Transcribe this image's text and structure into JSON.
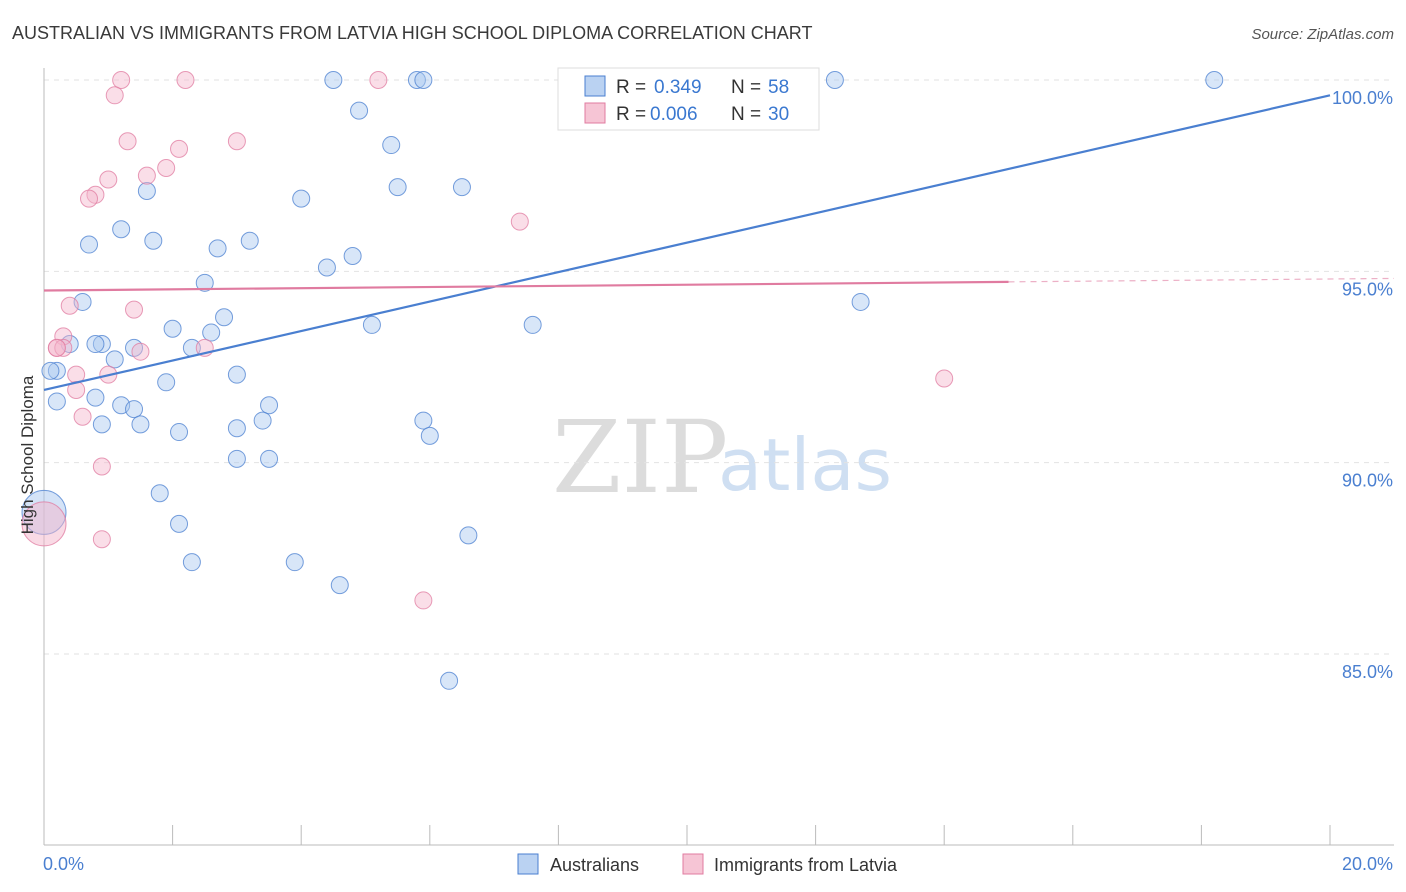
{
  "chart_data": {
    "type": "scatter",
    "title": "AUSTRALIAN VS IMMIGRANTS FROM LATVIA HIGH SCHOOL DIPLOMA CORRELATION CHART",
    "source": "Source: ZipAtlas.com",
    "ylabel": "High School Diploma",
    "xlim": [
      0,
      20
    ],
    "ylim": [
      80.5,
      101.0
    ],
    "x_ticks": [
      {
        "value": 0,
        "label": "0.0%"
      },
      {
        "value": 20,
        "label": "20.0%"
      }
    ],
    "y_ticks": [
      {
        "value": 100,
        "label": "100.0%"
      },
      {
        "value": 95,
        "label": "95.0%"
      },
      {
        "value": 90,
        "label": "90.0%"
      },
      {
        "value": 85,
        "label": "85.0%"
      }
    ],
    "watermark": {
      "zip": "ZIP",
      "atlas": "atlas"
    },
    "colors": {
      "blue": "#4a7fd0",
      "pink": "#e07ba0",
      "blue_fill": "#a9c7ef",
      "pink_fill": "#f4b6cb"
    },
    "stats": [
      {
        "r_label": "R =",
        "r_value": "0.349",
        "n_label": "N =",
        "n_value": "58"
      },
      {
        "r_label": "R =",
        "r_value": "0.006",
        "n_label": "N =",
        "n_value": "30"
      }
    ],
    "series": [
      {
        "name": "Australians",
        "color": "#4a7fd0",
        "trend": {
          "x0": 0,
          "y0": 91.9,
          "x1": 20,
          "y1": 99.6,
          "dash_from": null
        },
        "points": [
          [
            4.5,
            100.0
          ],
          [
            5.8,
            100.0
          ],
          [
            5.9,
            100.0
          ],
          [
            12.3,
            100.0
          ],
          [
            18.2,
            100.0
          ],
          [
            4.9,
            99.2
          ],
          [
            5.4,
            98.3
          ],
          [
            5.5,
            97.2
          ],
          [
            6.5,
            97.2
          ],
          [
            1.6,
            97.1
          ],
          [
            4.0,
            96.9
          ],
          [
            1.2,
            96.1
          ],
          [
            0.7,
            95.7
          ],
          [
            1.7,
            95.8
          ],
          [
            2.7,
            95.6
          ],
          [
            3.2,
            95.8
          ],
          [
            4.8,
            95.4
          ],
          [
            4.4,
            95.1
          ],
          [
            2.5,
            94.7
          ],
          [
            12.7,
            94.2
          ],
          [
            0.6,
            94.2
          ],
          [
            2.0,
            93.5
          ],
          [
            2.6,
            93.4
          ],
          [
            2.8,
            93.8
          ],
          [
            5.1,
            93.6
          ],
          [
            7.6,
            93.6
          ],
          [
            0.4,
            93.1
          ],
          [
            0.9,
            93.1
          ],
          [
            0.8,
            93.1
          ],
          [
            1.4,
            93.0
          ],
          [
            2.3,
            93.0
          ],
          [
            1.1,
            92.7
          ],
          [
            0.2,
            92.4
          ],
          [
            3.0,
            92.3
          ],
          [
            1.9,
            92.1
          ],
          [
            0.8,
            91.7
          ],
          [
            0.2,
            91.6
          ],
          [
            1.2,
            91.5
          ],
          [
            1.4,
            91.4
          ],
          [
            3.5,
            91.5
          ],
          [
            1.5,
            91.0
          ],
          [
            0.9,
            91.0
          ],
          [
            3.4,
            91.1
          ],
          [
            5.9,
            91.1
          ],
          [
            3.0,
            90.9
          ],
          [
            2.1,
            90.8
          ],
          [
            6.0,
            90.7
          ],
          [
            3.0,
            90.1
          ],
          [
            3.5,
            90.1
          ],
          [
            1.8,
            89.2
          ],
          [
            2.1,
            88.4
          ],
          [
            6.6,
            88.1
          ],
          [
            2.3,
            87.4
          ],
          [
            3.9,
            87.4
          ],
          [
            4.6,
            86.8
          ],
          [
            6.3,
            84.3
          ],
          [
            0.0,
            88.7
          ],
          [
            0.1,
            92.4
          ]
        ],
        "big_points": [
          [
            0.0,
            88.7
          ]
        ]
      },
      {
        "name": "Immigrants from Latvia",
        "color": "#e07ba0",
        "trend": {
          "x0": 0,
          "y0": 94.5,
          "x1": 20,
          "y1": 94.8,
          "dash_from": 15.0
        },
        "points": [
          [
            1.2,
            100.0
          ],
          [
            2.2,
            100.0
          ],
          [
            5.2,
            100.0
          ],
          [
            1.1,
            99.6
          ],
          [
            1.3,
            98.4
          ],
          [
            3.0,
            98.4
          ],
          [
            2.1,
            98.2
          ],
          [
            1.9,
            97.7
          ],
          [
            1.6,
            97.5
          ],
          [
            1.0,
            97.4
          ],
          [
            0.8,
            97.0
          ],
          [
            0.7,
            96.9
          ],
          [
            7.4,
            96.3
          ],
          [
            0.4,
            94.1
          ],
          [
            1.4,
            94.0
          ],
          [
            0.3,
            93.3
          ],
          [
            0.2,
            93.0
          ],
          [
            0.3,
            93.0
          ],
          [
            2.5,
            93.0
          ],
          [
            1.5,
            92.9
          ],
          [
            0.5,
            92.3
          ],
          [
            1.0,
            92.3
          ],
          [
            14.0,
            92.2
          ],
          [
            0.5,
            91.9
          ],
          [
            0.6,
            91.2
          ],
          [
            0.9,
            89.9
          ],
          [
            0.9,
            88.0
          ],
          [
            5.9,
            86.4
          ],
          [
            0.0,
            88.4
          ],
          [
            0.2,
            93.0
          ]
        ],
        "big_points": [
          [
            0.0,
            88.4
          ]
        ]
      }
    ]
  }
}
